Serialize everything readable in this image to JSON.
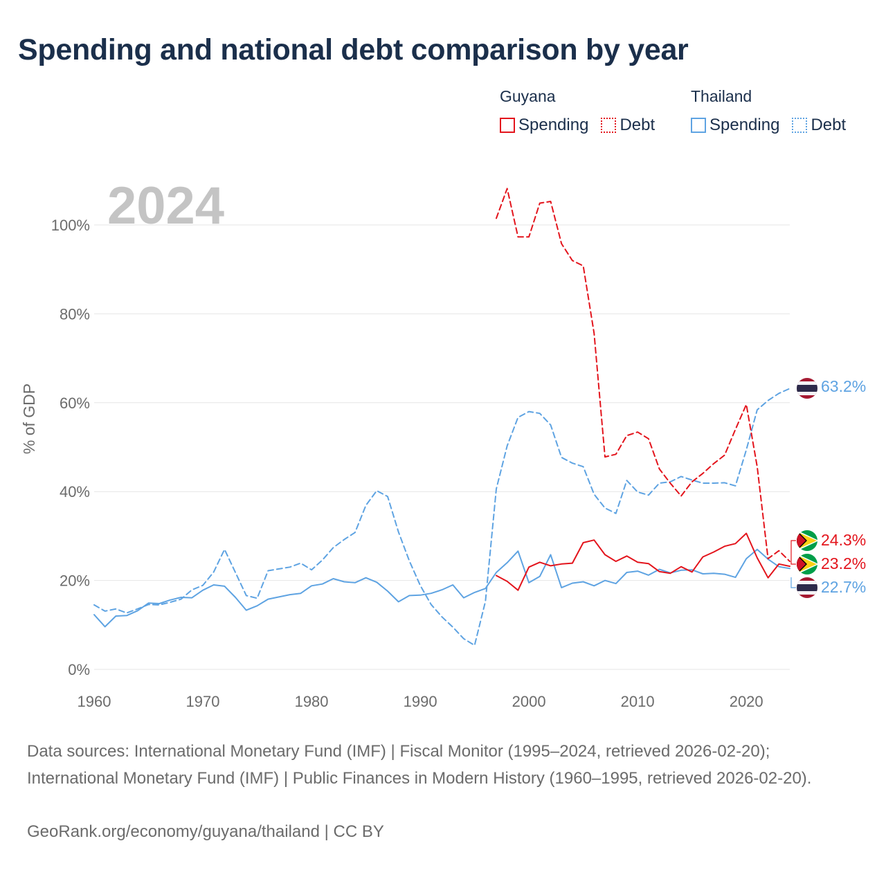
{
  "title": "Spending and national debt comparison by year",
  "legend": {
    "groups": [
      {
        "country": "Guyana",
        "color": "#e3141c",
        "items": [
          {
            "label": "Spending",
            "style": "solid"
          },
          {
            "label": "Debt",
            "style": "dotted"
          }
        ]
      },
      {
        "country": "Thailand",
        "color": "#5ea3e2",
        "items": [
          {
            "label": "Spending",
            "style": "solid"
          },
          {
            "label": "Debt",
            "style": "dotted"
          }
        ]
      }
    ]
  },
  "year_watermark": "2024",
  "end_labels": {
    "thailand_debt": "63.2%",
    "guyana_debt": "24.3%",
    "guyana_spending": "23.2%",
    "thailand_spending": "22.7%"
  },
  "footer": {
    "sources": "Data sources: International Monetary Fund (IMF) | Fiscal Monitor (1995–2024, retrieved 2026-02-20); International Monetary Fund (IMF) | Public Finances in Modern History (1960–1995, retrieved 2026-02-20).",
    "credit": "GeoRank.org/economy/guyana/thailand | CC BY"
  },
  "colors": {
    "guyana": "#e3141c",
    "thailand": "#5ea3e2",
    "title": "#1b2f4b",
    "axis_text": "#6b6b6b",
    "grid": "#e6e6e6",
    "watermark": "#c4c4c4"
  },
  "chart_data": {
    "type": "line",
    "title": "Spending and national debt comparison by year",
    "xlabel": "",
    "ylabel": "% of GDP",
    "xlim": [
      1960,
      2024
    ],
    "ylim": [
      0,
      110
    ],
    "x_ticks": [
      1960,
      1970,
      1980,
      1990,
      2000,
      2010,
      2020
    ],
    "y_ticks": [
      0,
      20,
      40,
      60,
      80,
      100
    ],
    "y_tick_suffix": "%",
    "grid": true,
    "legend_position": "top-right",
    "series": [
      {
        "name": "Thailand Spending",
        "country": "thailand",
        "style": "solid",
        "x": [
          1960,
          1961,
          1962,
          1963,
          1964,
          1965,
          1966,
          1967,
          1968,
          1969,
          1970,
          1971,
          1972,
          1973,
          1974,
          1975,
          1976,
          1977,
          1978,
          1979,
          1980,
          1981,
          1982,
          1983,
          1984,
          1985,
          1986,
          1987,
          1988,
          1989,
          1990,
          1991,
          1992,
          1993,
          1994,
          1995,
          1996,
          1997,
          1998,
          1999,
          2000,
          2001,
          2002,
          2003,
          2004,
          2005,
          2006,
          2007,
          2008,
          2009,
          2010,
          2011,
          2012,
          2013,
          2014,
          2015,
          2016,
          2017,
          2018,
          2019,
          2020,
          2021,
          2022,
          2023,
          2024
        ],
        "values": [
          12.3,
          9.6,
          12.0,
          12.1,
          13.2,
          14.9,
          14.8,
          15.6,
          16.2,
          16.1,
          17.8,
          19.0,
          18.7,
          16.2,
          13.3,
          14.3,
          15.8,
          16.3,
          16.8,
          17.1,
          18.8,
          19.2,
          20.4,
          19.7,
          19.5,
          20.6,
          19.6,
          17.6,
          15.2,
          16.6,
          16.7,
          17.1,
          17.9,
          19.0,
          16.1,
          17.3,
          18.2,
          21.8,
          24.0,
          26.6,
          19.5,
          20.9,
          25.8,
          18.4,
          19.4,
          19.7,
          18.8,
          20.0,
          19.3,
          21.8,
          22.1,
          21.2,
          22.5,
          21.7,
          22.3,
          22.4,
          21.5,
          21.6,
          21.4,
          20.7,
          24.9,
          27.0,
          24.8,
          23.1,
          22.7
        ]
      },
      {
        "name": "Thailand Debt",
        "country": "thailand",
        "style": "dashed",
        "x": [
          1960,
          1961,
          1962,
          1963,
          1964,
          1965,
          1966,
          1967,
          1968,
          1969,
          1970,
          1971,
          1972,
          1973,
          1974,
          1975,
          1976,
          1977,
          1978,
          1979,
          1980,
          1981,
          1982,
          1983,
          1984,
          1985,
          1986,
          1987,
          1988,
          1989,
          1990,
          1991,
          1992,
          1993,
          1994,
          1995,
          1996,
          1997,
          1998,
          1999,
          2000,
          2001,
          2002,
          2003,
          2004,
          2005,
          2006,
          2007,
          2008,
          2009,
          2010,
          2011,
          2012,
          2013,
          2014,
          2015,
          2016,
          2017,
          2018,
          2019,
          2020,
          2021,
          2022,
          2023,
          2024
        ],
        "values": [
          14.5,
          13.1,
          13.6,
          12.7,
          13.6,
          14.6,
          14.5,
          15.1,
          15.8,
          17.9,
          18.9,
          21.9,
          27.0,
          21.8,
          16.6,
          16.0,
          22.2,
          22.6,
          23.0,
          23.9,
          22.4,
          24.6,
          27.4,
          29.2,
          30.8,
          36.9,
          40.2,
          38.9,
          30.9,
          24.4,
          18.9,
          14.6,
          11.8,
          9.5,
          6.9,
          5.4,
          15.3,
          40.6,
          50.3,
          56.7,
          58.0,
          57.6,
          55.0,
          47.7,
          46.4,
          45.6,
          39.4,
          36.3,
          35.1,
          42.5,
          39.9,
          39.2,
          41.9,
          42.2,
          43.4,
          42.6,
          41.9,
          41.9,
          42.0,
          41.3,
          49.4,
          58.4,
          60.5,
          62.1,
          63.2
        ]
      },
      {
        "name": "Guyana Spending",
        "country": "guyana",
        "style": "solid",
        "x": [
          1997,
          1998,
          1999,
          2000,
          2001,
          2002,
          2003,
          2004,
          2005,
          2006,
          2007,
          2008,
          2009,
          2010,
          2011,
          2012,
          2013,
          2014,
          2015,
          2016,
          2017,
          2018,
          2019,
          2020,
          2021,
          2022,
          2023,
          2024
        ],
        "values": [
          21.1,
          19.8,
          17.8,
          23.0,
          24.1,
          23.3,
          23.7,
          23.9,
          28.5,
          29.1,
          25.8,
          24.3,
          25.5,
          24.1,
          23.8,
          22.0,
          21.6,
          23.1,
          21.9,
          25.3,
          26.4,
          27.7,
          28.3,
          30.6,
          25.1,
          20.6,
          23.7,
          23.2
        ]
      },
      {
        "name": "Guyana Debt",
        "country": "guyana",
        "style": "dashed",
        "x": [
          1997,
          1998,
          1999,
          2000,
          2001,
          2002,
          2003,
          2004,
          2005,
          2006,
          2007,
          2008,
          2009,
          2010,
          2011,
          2012,
          2013,
          2014,
          2015,
          2016,
          2017,
          2018,
          2019,
          2020,
          2021,
          2022,
          2023,
          2024
        ],
        "values": [
          101.5,
          108.2,
          97.3,
          97.3,
          104.9,
          105.3,
          95.8,
          92.0,
          90.8,
          75.6,
          47.8,
          48.4,
          52.6,
          53.4,
          51.9,
          45.1,
          41.9,
          39.0,
          42.2,
          44.1,
          46.3,
          48.2,
          54.0,
          59.6,
          45.6,
          24.9,
          26.7,
          24.3
        ]
      }
    ]
  }
}
